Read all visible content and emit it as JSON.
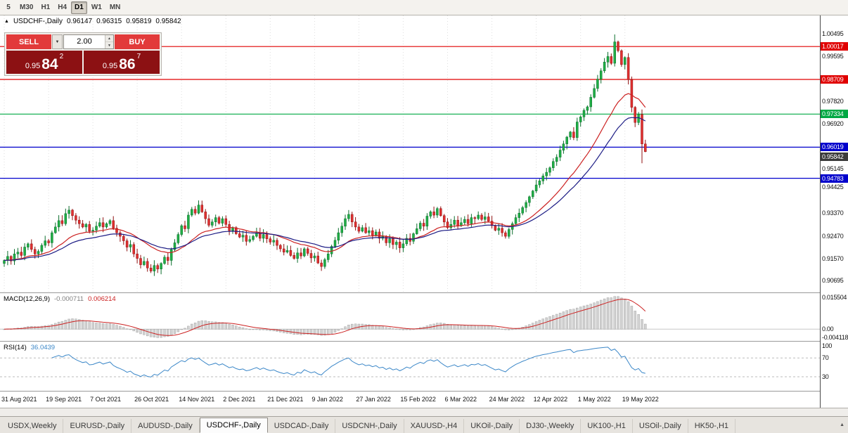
{
  "toolbar": {
    "timeframes": [
      "5",
      "M30",
      "H1",
      "H4",
      "D1",
      "W1",
      "MN"
    ],
    "active": "D1"
  },
  "chart_header": {
    "collapse_icon": "▲",
    "symbol": "USDCHF-,Daily",
    "open": "0.96147",
    "high": "0.96315",
    "low": "0.95819",
    "close": "0.95842"
  },
  "trade_panel": {
    "sell_label": "SELL",
    "buy_label": "BUY",
    "volume": "2.00",
    "bid": {
      "prefix": "0.95",
      "big": "84",
      "sup": "2"
    },
    "ask": {
      "prefix": "0.95",
      "big": "86",
      "sup": "7"
    }
  },
  "icons": {
    "dropdown": "▼",
    "spinner_up": "▲",
    "spinner_down": "▼",
    "tab_scroll": "▲"
  },
  "chart_data": {
    "type": "candlestick",
    "symbol": "USDCHF-",
    "timeframe": "Daily",
    "price_range": {
      "top": 1.0125,
      "bottom": 0.9025
    },
    "label_step": 13,
    "x_labels": [
      "31 Aug 2021",
      "19 Sep 2021",
      "7 Oct 2021",
      "26 Oct 2021",
      "14 Nov 2021",
      "2 Dec 2021",
      "21 Dec 2021",
      "9 Jan 2022",
      "27 Jan 2022",
      "15 Feb 2022",
      "6 Mar 2022",
      "24 Mar 2022",
      "12 Apr 2022",
      "1 May 2022",
      "19 May 2022"
    ],
    "closes": [
      0.9152,
      0.9168,
      0.915,
      0.9178,
      0.9185,
      0.9172,
      0.9205,
      0.9218,
      0.9196,
      0.9178,
      0.9188,
      0.9212,
      0.923,
      0.9222,
      0.9262,
      0.9285,
      0.931,
      0.9298,
      0.9338,
      0.9352,
      0.933,
      0.9312,
      0.9298,
      0.9285,
      0.9295,
      0.9268,
      0.9272,
      0.9288,
      0.9302,
      0.9285,
      0.9298,
      0.931,
      0.928,
      0.9262,
      0.9248,
      0.923,
      0.9205,
      0.9215,
      0.9178,
      0.916,
      0.9135,
      0.9148,
      0.9122,
      0.911,
      0.9132,
      0.9118,
      0.914,
      0.9165,
      0.9152,
      0.9195,
      0.9222,
      0.9255,
      0.929,
      0.9278,
      0.9332,
      0.9355,
      0.934,
      0.9372,
      0.9345,
      0.9318,
      0.9292,
      0.9305,
      0.9322,
      0.93,
      0.9318,
      0.9295,
      0.927,
      0.9282,
      0.9258,
      0.9245,
      0.9252,
      0.9228,
      0.9235,
      0.9248,
      0.9262,
      0.924,
      0.9255,
      0.9238,
      0.9225,
      0.9232,
      0.9212,
      0.9198,
      0.9185,
      0.9192,
      0.9172,
      0.916,
      0.9182,
      0.917,
      0.9198,
      0.918,
      0.9162,
      0.917,
      0.9142,
      0.9128,
      0.9155,
      0.9178,
      0.9208,
      0.9232,
      0.9262,
      0.9288,
      0.9318,
      0.9335,
      0.9305,
      0.9285,
      0.9268,
      0.9282,
      0.9262,
      0.927,
      0.9252,
      0.9265,
      0.924,
      0.9248,
      0.9222,
      0.9238,
      0.9215,
      0.9225,
      0.9202,
      0.9218,
      0.924,
      0.9228,
      0.9258,
      0.9278,
      0.93,
      0.9288,
      0.9328,
      0.9345,
      0.9332,
      0.9358,
      0.933,
      0.9305,
      0.9282,
      0.9295,
      0.9312,
      0.929,
      0.9302,
      0.9315,
      0.9298,
      0.9322,
      0.9318,
      0.9332,
      0.9315,
      0.9325,
      0.9308,
      0.929,
      0.9272,
      0.928,
      0.9262,
      0.9248,
      0.9275,
      0.9298,
      0.9322,
      0.934,
      0.9362,
      0.9382,
      0.9405,
      0.9428,
      0.9452,
      0.9468,
      0.9488,
      0.9502,
      0.952,
      0.9545,
      0.9562,
      0.959,
      0.9615,
      0.9642,
      0.9662,
      0.964,
      0.9702,
      0.9722,
      0.9748,
      0.9762,
      0.98,
      0.9835,
      0.9872,
      0.9905,
      0.994,
      0.9962,
      0.9935,
      1.002,
      0.9985,
      0.993,
      0.9958,
      0.987,
      0.976,
      0.97,
      0.9732,
      0.9615,
      0.95842
    ],
    "last_candle": {
      "open": 0.96147,
      "high": 0.96315,
      "low": 0.95819,
      "close": 0.95842
    },
    "overrides": [
      {
        "i": 179,
        "h": 1.00495
      },
      {
        "i": 187,
        "l": 0.9538
      }
    ],
    "y_ticks": [
      "1.00495",
      "0.99595",
      "0.97820",
      "0.96920",
      "0.95145",
      "0.94425",
      "0.93370",
      "0.92470",
      "0.91570",
      "0.90695"
    ],
    "hlines": [
      {
        "price": "1.00017",
        "color": "#e00000"
      },
      {
        "price": "0.98709",
        "color": "#e00000"
      },
      {
        "price": "0.97334",
        "color": "#00a843"
      },
      {
        "price": "0.96019",
        "color": "#0000cc"
      },
      {
        "price": "0.94783",
        "color": "#0000cc"
      }
    ],
    "current_price": "0.95842",
    "moving_averages": [
      {
        "period": 21,
        "color": "#cc2222"
      },
      {
        "period": 34,
        "color": "#1d1d85"
      }
    ],
    "colors": {
      "up": "#1fae45",
      "down": "#e03030",
      "up_edge": "#0c6e2d",
      "down_edge": "#8f1010",
      "macd_hist": "#d2d2d2",
      "macd_hist_edge": "#9a9a9a",
      "macd_signal": "#cc2222",
      "rsi": "#3b87c8",
      "price_tag_bg": "#3a3a3a",
      "grid": "#dedede"
    },
    "indicators": {
      "macd": {
        "label": "MACD(12,26,9)",
        "value1": "-0.000711",
        "value2": "0.006214",
        "axis": [
          {
            "v": 0.015504,
            "label": "0.015504"
          },
          {
            "v": 0,
            "label": "0.00"
          },
          {
            "v": -0.004118,
            "label": "-0.004118"
          }
        ]
      },
      "rsi": {
        "label": "RSI(14)",
        "value": "36.0439",
        "levels": [
          {
            "v": 100,
            "label": "100"
          },
          {
            "v": 70,
            "label": "70"
          },
          {
            "v": 30,
            "label": "30"
          }
        ],
        "dashed": [
          70,
          30
        ]
      }
    }
  },
  "tabs": {
    "items": [
      "USDX,Weekly",
      "EURUSD-,Daily",
      "AUDUSD-,Daily",
      "USDCHF-,Daily",
      "USDCAD-,Daily",
      "USDCNH-,Daily",
      "XAUUSD-,H4",
      "UKOil-,Daily",
      "DJ30-,Weekly",
      "UK100-,H1",
      "USOil-,Daily",
      "HK50-,H1"
    ],
    "active_index": 3
  }
}
